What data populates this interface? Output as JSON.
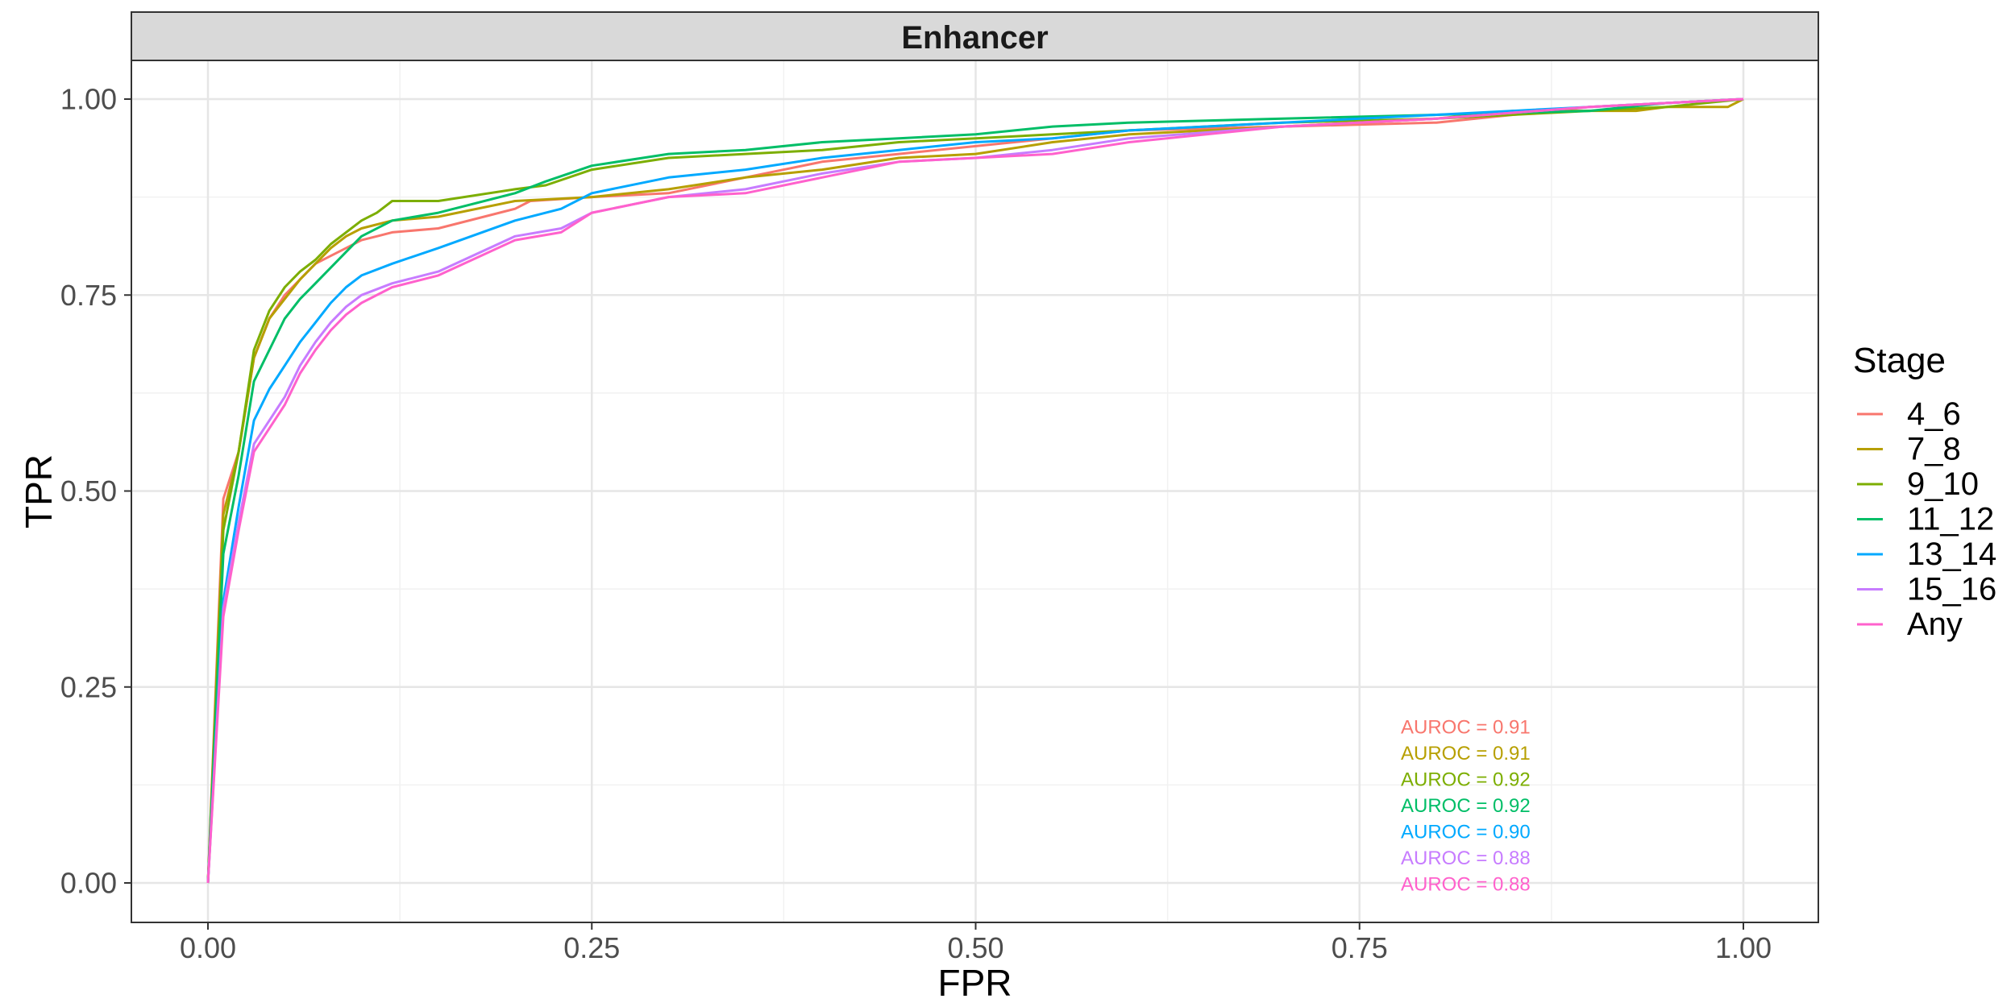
{
  "chart_data": {
    "type": "line",
    "facet_title": "Enhancer",
    "xlabel": "FPR",
    "ylabel": "TPR",
    "xlim": [
      0,
      1
    ],
    "ylim": [
      0,
      1
    ],
    "x_ticks": [
      "0.00",
      "0.25",
      "0.50",
      "0.75",
      "1.00"
    ],
    "y_ticks": [
      "0.00",
      "0.25",
      "0.50",
      "0.75",
      "1.00"
    ],
    "grid": true,
    "legend_position": "right",
    "legend_title": "Stage",
    "series": [
      {
        "name": "4_6",
        "color": "#F8766D",
        "x": [
          0,
          0.01,
          0.02,
          0.03,
          0.04,
          0.05,
          0.06,
          0.07,
          0.08,
          0.09,
          0.1,
          0.11,
          0.12,
          0.15,
          0.2,
          0.21,
          0.25,
          0.3,
          0.35,
          0.4,
          0.45,
          0.5,
          0.55,
          0.6,
          0.7,
          0.8,
          0.85,
          0.9,
          0.95,
          1
        ],
        "y": [
          0,
          0.49,
          0.55,
          0.67,
          0.72,
          0.75,
          0.77,
          0.79,
          0.8,
          0.81,
          0.82,
          0.825,
          0.83,
          0.835,
          0.86,
          0.87,
          0.875,
          0.88,
          0.9,
          0.92,
          0.93,
          0.94,
          0.95,
          0.96,
          0.965,
          0.97,
          0.98,
          0.99,
          0.995,
          1
        ]
      },
      {
        "name": "7_8",
        "color": "#B79F00",
        "x": [
          0,
          0.01,
          0.02,
          0.03,
          0.04,
          0.05,
          0.06,
          0.07,
          0.08,
          0.09,
          0.1,
          0.12,
          0.15,
          0.2,
          0.25,
          0.3,
          0.35,
          0.4,
          0.45,
          0.5,
          0.55,
          0.6,
          0.7,
          0.8,
          0.85,
          0.93,
          0.95,
          0.99,
          1
        ],
        "y": [
          0,
          0.47,
          0.55,
          0.67,
          0.72,
          0.745,
          0.77,
          0.79,
          0.81,
          0.825,
          0.835,
          0.845,
          0.85,
          0.87,
          0.875,
          0.885,
          0.9,
          0.91,
          0.925,
          0.93,
          0.945,
          0.955,
          0.965,
          0.975,
          0.985,
          0.985,
          0.99,
          0.99,
          1
        ]
      },
      {
        "name": "9_10",
        "color": "#7CAE00",
        "x": [
          0,
          0.01,
          0.02,
          0.03,
          0.04,
          0.05,
          0.06,
          0.07,
          0.08,
          0.09,
          0.1,
          0.11,
          0.12,
          0.15,
          0.2,
          0.22,
          0.25,
          0.3,
          0.35,
          0.4,
          0.45,
          0.5,
          0.55,
          0.6,
          0.7,
          0.8,
          0.9,
          0.95,
          1
        ],
        "y": [
          0,
          0.45,
          0.55,
          0.68,
          0.73,
          0.76,
          0.78,
          0.795,
          0.815,
          0.83,
          0.845,
          0.855,
          0.87,
          0.87,
          0.885,
          0.89,
          0.91,
          0.925,
          0.93,
          0.935,
          0.945,
          0.95,
          0.955,
          0.96,
          0.97,
          0.975,
          0.985,
          0.99,
          1
        ]
      },
      {
        "name": "11_12",
        "color": "#00BE67",
        "x": [
          0,
          0.01,
          0.02,
          0.03,
          0.04,
          0.05,
          0.06,
          0.07,
          0.08,
          0.09,
          0.1,
          0.12,
          0.15,
          0.2,
          0.22,
          0.25,
          0.3,
          0.35,
          0.4,
          0.45,
          0.5,
          0.55,
          0.6,
          0.7,
          0.8,
          0.9,
          0.95,
          1
        ],
        "y": [
          0,
          0.42,
          0.52,
          0.64,
          0.68,
          0.72,
          0.745,
          0.765,
          0.785,
          0.805,
          0.825,
          0.845,
          0.855,
          0.88,
          0.895,
          0.915,
          0.93,
          0.935,
          0.945,
          0.95,
          0.955,
          0.965,
          0.97,
          0.975,
          0.98,
          0.985,
          0.995,
          1
        ]
      },
      {
        "name": "13_14",
        "color": "#00A9FF",
        "x": [
          0,
          0.01,
          0.02,
          0.03,
          0.04,
          0.05,
          0.06,
          0.07,
          0.08,
          0.09,
          0.1,
          0.12,
          0.15,
          0.2,
          0.23,
          0.25,
          0.3,
          0.35,
          0.4,
          0.45,
          0.5,
          0.55,
          0.6,
          0.7,
          0.8,
          0.9,
          0.95,
          1
        ],
        "y": [
          0,
          0.36,
          0.48,
          0.59,
          0.63,
          0.66,
          0.69,
          0.715,
          0.74,
          0.76,
          0.775,
          0.79,
          0.81,
          0.845,
          0.86,
          0.88,
          0.9,
          0.91,
          0.925,
          0.935,
          0.945,
          0.95,
          0.96,
          0.97,
          0.98,
          0.99,
          0.995,
          1
        ]
      },
      {
        "name": "15_16",
        "color": "#C77CFF",
        "x": [
          0,
          0.01,
          0.02,
          0.03,
          0.04,
          0.05,
          0.06,
          0.07,
          0.08,
          0.09,
          0.1,
          0.12,
          0.15,
          0.2,
          0.23,
          0.25,
          0.3,
          0.35,
          0.4,
          0.45,
          0.5,
          0.55,
          0.6,
          0.7,
          0.8,
          0.9,
          0.95,
          1
        ],
        "y": [
          0,
          0.35,
          0.46,
          0.56,
          0.59,
          0.62,
          0.66,
          0.69,
          0.715,
          0.735,
          0.75,
          0.765,
          0.78,
          0.825,
          0.835,
          0.855,
          0.875,
          0.885,
          0.905,
          0.92,
          0.925,
          0.935,
          0.95,
          0.965,
          0.975,
          0.99,
          0.995,
          1
        ]
      },
      {
        "name": "Any",
        "color": "#FF61CC",
        "x": [
          0,
          0.01,
          0.02,
          0.03,
          0.04,
          0.05,
          0.06,
          0.07,
          0.08,
          0.09,
          0.1,
          0.12,
          0.15,
          0.2,
          0.23,
          0.25,
          0.3,
          0.35,
          0.4,
          0.45,
          0.5,
          0.55,
          0.6,
          0.7,
          0.8,
          0.9,
          0.95,
          1
        ],
        "y": [
          0,
          0.34,
          0.45,
          0.55,
          0.58,
          0.61,
          0.65,
          0.68,
          0.705,
          0.725,
          0.74,
          0.76,
          0.775,
          0.82,
          0.83,
          0.855,
          0.875,
          0.88,
          0.9,
          0.92,
          0.925,
          0.93,
          0.945,
          0.965,
          0.975,
          0.99,
          0.995,
          1
        ]
      }
    ],
    "annotations": [
      {
        "text": "AUROC = 0.91",
        "color": "#F8766D"
      },
      {
        "text": "AUROC = 0.91",
        "color": "#B79F00"
      },
      {
        "text": "AUROC = 0.92",
        "color": "#7CAE00"
      },
      {
        "text": "AUROC = 0.92",
        "color": "#00BE67"
      },
      {
        "text": "AUROC = 0.90",
        "color": "#00A9FF"
      },
      {
        "text": "AUROC = 0.88",
        "color": "#C77CFF"
      },
      {
        "text": "AUROC = 0.88",
        "color": "#FF61CC"
      }
    ]
  }
}
